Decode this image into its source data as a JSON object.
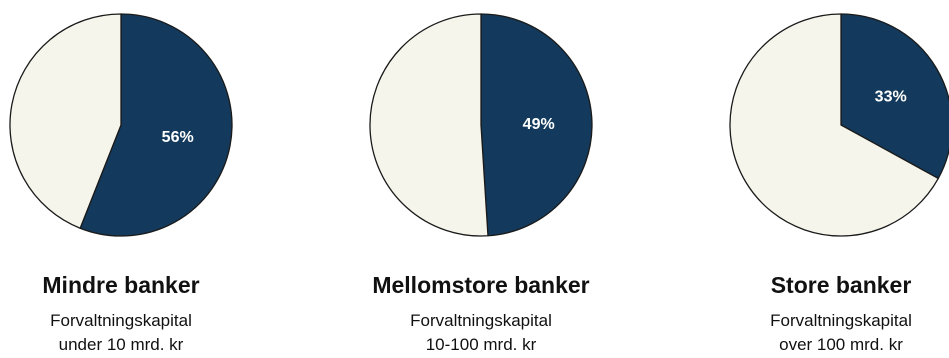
{
  "colors": {
    "share": "#133a5c",
    "remainder": "#f6f5eb",
    "outline": "#1a1a1a",
    "label": "#ffffff"
  },
  "chart_data": [
    {
      "type": "pie",
      "title": "Mindre banker",
      "subtitle_line1": "Forvaltningskapital",
      "subtitle_line2": "under 10 mrd. kr",
      "values": [
        56,
        44
      ],
      "data_label": "56%"
    },
    {
      "type": "pie",
      "title": "Mellomstore banker",
      "subtitle_line1": "Forvaltningskapital",
      "subtitle_line2": "10-100 mrd. kr",
      "values": [
        49,
        51
      ],
      "data_label": "49%"
    },
    {
      "type": "pie",
      "title": "Store banker",
      "subtitle_line1": "Forvaltningskapital",
      "subtitle_line2": "over 100 mrd. kr",
      "values": [
        33,
        67
      ],
      "data_label": "33%"
    }
  ]
}
